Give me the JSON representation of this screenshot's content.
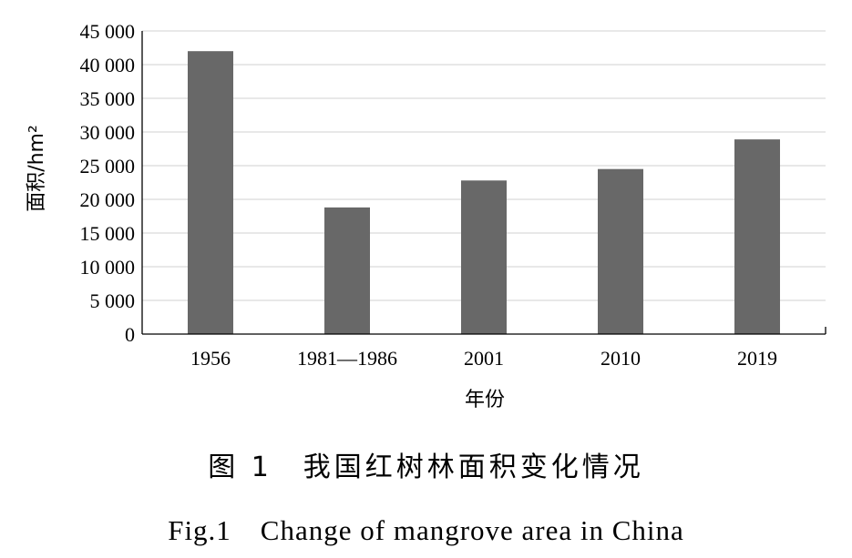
{
  "chart_data": {
    "type": "bar",
    "categories": [
      "1956",
      "1981—1986",
      "2001",
      "2010",
      "2019"
    ],
    "values": [
      42000,
      18800,
      22800,
      24500,
      28900
    ],
    "ylabel": "面积/hm²",
    "xlabel": "年份",
    "ylim": [
      0,
      45000
    ],
    "yticks": [
      0,
      5000,
      10000,
      15000,
      20000,
      25000,
      30000,
      35000,
      40000,
      45000
    ],
    "ytick_labels": [
      "0",
      "5 000",
      "10 000",
      "15 000",
      "20 000",
      "25 000",
      "30 000",
      "35 000",
      "40 000",
      "45 000"
    ],
    "grid": true,
    "bar_color": "#686868",
    "grid_color": "#d9d9d9"
  },
  "caption": {
    "cn": "图 1　我国红树林面积变化情况",
    "en": "Fig.1　Change of mangrove area in China"
  }
}
